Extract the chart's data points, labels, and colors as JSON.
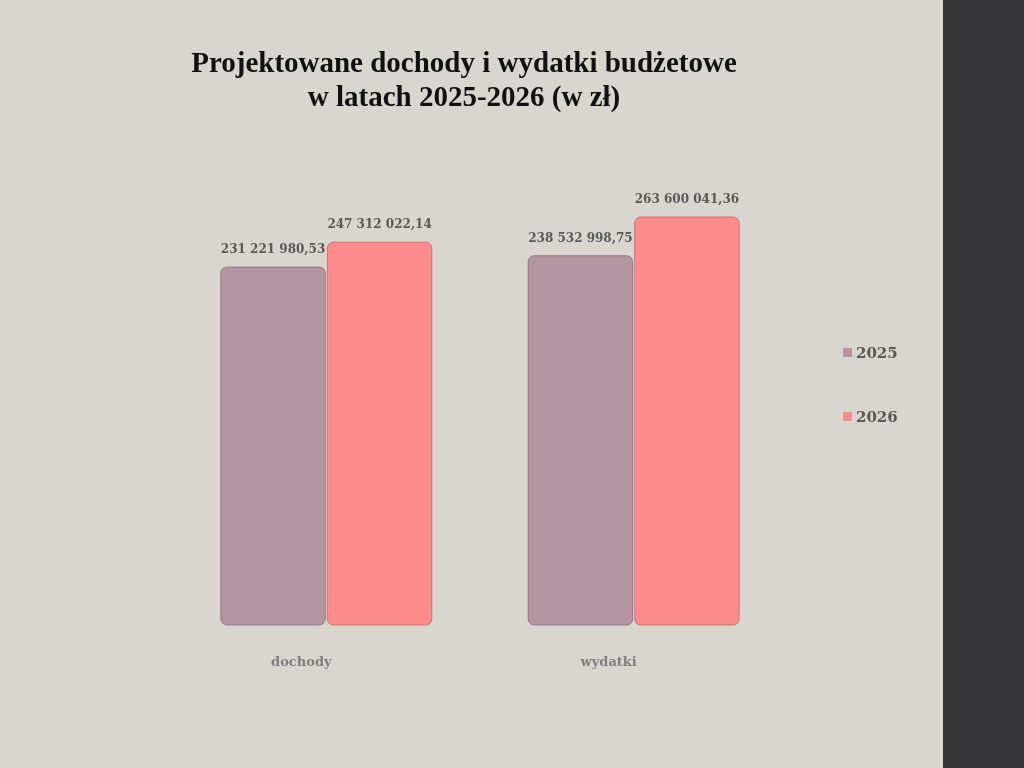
{
  "chart_data": {
    "type": "bar",
    "title": "Projektowane dochody i wydatki budżetowe\nw latach 2025-2026 (w zł)",
    "categories": [
      "dochody",
      "wydatki"
    ],
    "series": [
      {
        "name": "2025",
        "color": "#b695a3",
        "values": [
          231221980.53,
          238532998.75
        ],
        "value_labels": [
          "231 221 980,53",
          "238 532 998,75"
        ]
      },
      {
        "name": "2026",
        "color": "#ff8c8c",
        "values": [
          247312022.14,
          263600041.36
        ],
        "value_labels": [
          "247 312 022,14",
          "263 600 041,36"
        ]
      }
    ],
    "legend": "right"
  }
}
